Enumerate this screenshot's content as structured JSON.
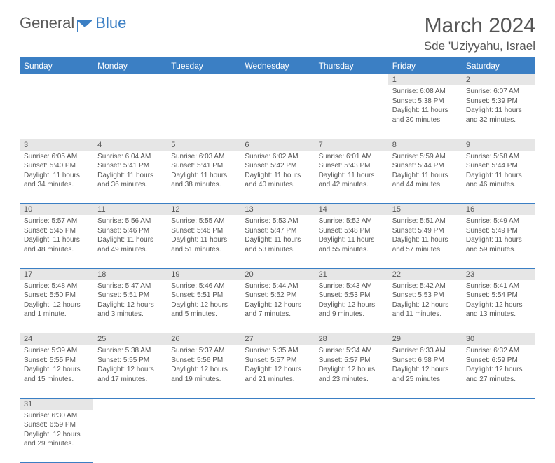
{
  "logo": {
    "text1": "General",
    "text2": "Blue"
  },
  "title": "March 2024",
  "location": "Sde 'Uziyyahu, Israel",
  "colors": {
    "header_bg": "#3b7fc4",
    "header_fg": "#ffffff",
    "daynum_bg": "#e6e6e6",
    "border": "#3b7fc4",
    "page_bg": "#ffffff",
    "text": "#555555"
  },
  "weekdays": [
    "Sunday",
    "Monday",
    "Tuesday",
    "Wednesday",
    "Thursday",
    "Friday",
    "Saturday"
  ],
  "weeks": [
    [
      null,
      null,
      null,
      null,
      null,
      {
        "n": "1",
        "sr": "6:08 AM",
        "ss": "5:38 PM",
        "dl": "11 hours and 30 minutes."
      },
      {
        "n": "2",
        "sr": "6:07 AM",
        "ss": "5:39 PM",
        "dl": "11 hours and 32 minutes."
      }
    ],
    [
      {
        "n": "3",
        "sr": "6:05 AM",
        "ss": "5:40 PM",
        "dl": "11 hours and 34 minutes."
      },
      {
        "n": "4",
        "sr": "6:04 AM",
        "ss": "5:41 PM",
        "dl": "11 hours and 36 minutes."
      },
      {
        "n": "5",
        "sr": "6:03 AM",
        "ss": "5:41 PM",
        "dl": "11 hours and 38 minutes."
      },
      {
        "n": "6",
        "sr": "6:02 AM",
        "ss": "5:42 PM",
        "dl": "11 hours and 40 minutes."
      },
      {
        "n": "7",
        "sr": "6:01 AM",
        "ss": "5:43 PM",
        "dl": "11 hours and 42 minutes."
      },
      {
        "n": "8",
        "sr": "5:59 AM",
        "ss": "5:44 PM",
        "dl": "11 hours and 44 minutes."
      },
      {
        "n": "9",
        "sr": "5:58 AM",
        "ss": "5:44 PM",
        "dl": "11 hours and 46 minutes."
      }
    ],
    [
      {
        "n": "10",
        "sr": "5:57 AM",
        "ss": "5:45 PM",
        "dl": "11 hours and 48 minutes."
      },
      {
        "n": "11",
        "sr": "5:56 AM",
        "ss": "5:46 PM",
        "dl": "11 hours and 49 minutes."
      },
      {
        "n": "12",
        "sr": "5:55 AM",
        "ss": "5:46 PM",
        "dl": "11 hours and 51 minutes."
      },
      {
        "n": "13",
        "sr": "5:53 AM",
        "ss": "5:47 PM",
        "dl": "11 hours and 53 minutes."
      },
      {
        "n": "14",
        "sr": "5:52 AM",
        "ss": "5:48 PM",
        "dl": "11 hours and 55 minutes."
      },
      {
        "n": "15",
        "sr": "5:51 AM",
        "ss": "5:49 PM",
        "dl": "11 hours and 57 minutes."
      },
      {
        "n": "16",
        "sr": "5:49 AM",
        "ss": "5:49 PM",
        "dl": "11 hours and 59 minutes."
      }
    ],
    [
      {
        "n": "17",
        "sr": "5:48 AM",
        "ss": "5:50 PM",
        "dl": "12 hours and 1 minute."
      },
      {
        "n": "18",
        "sr": "5:47 AM",
        "ss": "5:51 PM",
        "dl": "12 hours and 3 minutes."
      },
      {
        "n": "19",
        "sr": "5:46 AM",
        "ss": "5:51 PM",
        "dl": "12 hours and 5 minutes."
      },
      {
        "n": "20",
        "sr": "5:44 AM",
        "ss": "5:52 PM",
        "dl": "12 hours and 7 minutes."
      },
      {
        "n": "21",
        "sr": "5:43 AM",
        "ss": "5:53 PM",
        "dl": "12 hours and 9 minutes."
      },
      {
        "n": "22",
        "sr": "5:42 AM",
        "ss": "5:53 PM",
        "dl": "12 hours and 11 minutes."
      },
      {
        "n": "23",
        "sr": "5:41 AM",
        "ss": "5:54 PM",
        "dl": "12 hours and 13 minutes."
      }
    ],
    [
      {
        "n": "24",
        "sr": "5:39 AM",
        "ss": "5:55 PM",
        "dl": "12 hours and 15 minutes."
      },
      {
        "n": "25",
        "sr": "5:38 AM",
        "ss": "5:55 PM",
        "dl": "12 hours and 17 minutes."
      },
      {
        "n": "26",
        "sr": "5:37 AM",
        "ss": "5:56 PM",
        "dl": "12 hours and 19 minutes."
      },
      {
        "n": "27",
        "sr": "5:35 AM",
        "ss": "5:57 PM",
        "dl": "12 hours and 21 minutes."
      },
      {
        "n": "28",
        "sr": "5:34 AM",
        "ss": "5:57 PM",
        "dl": "12 hours and 23 minutes."
      },
      {
        "n": "29",
        "sr": "6:33 AM",
        "ss": "6:58 PM",
        "dl": "12 hours and 25 minutes."
      },
      {
        "n": "30",
        "sr": "6:32 AM",
        "ss": "6:59 PM",
        "dl": "12 hours and 27 minutes."
      }
    ],
    [
      {
        "n": "31",
        "sr": "6:30 AM",
        "ss": "6:59 PM",
        "dl": "12 hours and 29 minutes."
      },
      null,
      null,
      null,
      null,
      null,
      null
    ]
  ],
  "labels": {
    "sunrise": "Sunrise: ",
    "sunset": "Sunset: ",
    "daylight": "Daylight: "
  }
}
